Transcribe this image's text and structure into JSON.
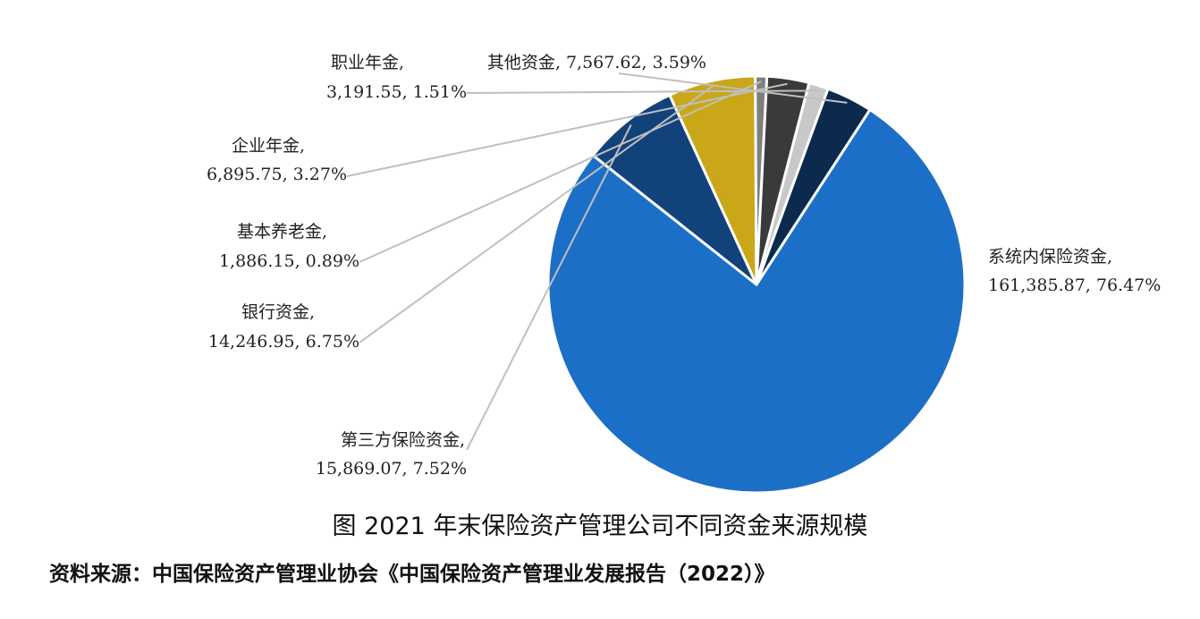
{
  "figure": {
    "title": "图 2021 年末保险资产管理公司不同资金来源规模",
    "source": "资料来源：中国保险资产管理业协会《中国保险资产管理业发展报告（2022）》"
  },
  "chart_data": {
    "type": "pie",
    "title": "图 2021 年末保险资产管理公司不同资金来源规模",
    "slices": [
      {
        "name": "系统内保险资金",
        "value": 161385.87,
        "percent": 76.47,
        "color": "#1C6FC6",
        "line1": "系统内保险资金,",
        "line2": "161,385.87, 76.47%"
      },
      {
        "name": "第三方保险资金",
        "value": 15869.07,
        "percent": 7.52,
        "color": "#12427A",
        "line1": "第三方保险资金,",
        "line2": "15,869.07, 7.52%"
      },
      {
        "name": "银行资金",
        "value": 14246.95,
        "percent": 6.75,
        "color": "#C9A718",
        "line1": "银行资金,",
        "line2": "14,246.95, 6.75%"
      },
      {
        "name": "基本养老金",
        "value": 1886.15,
        "percent": 0.89,
        "color": "#7F7F7F",
        "line1": "基本养老金,",
        "line2": "1,886.15, 0.89%"
      },
      {
        "name": "企业年金",
        "value": 6895.75,
        "percent": 3.27,
        "color": "#3A3A3A",
        "line1": "企业年金,",
        "line2": "6,895.75, 3.27%"
      },
      {
        "name": "职业年金",
        "value": 3191.55,
        "percent": 1.51,
        "color": "#C8C8C8",
        "line1": "职业年金,",
        "line2": "3,191.55, 1.51%"
      },
      {
        "name": "其他资金",
        "value": 7567.62,
        "percent": 3.59,
        "color": "#0B2A4E",
        "line1": "其他资金, 7,567.62, 3.59%",
        "line2": ""
      }
    ]
  }
}
